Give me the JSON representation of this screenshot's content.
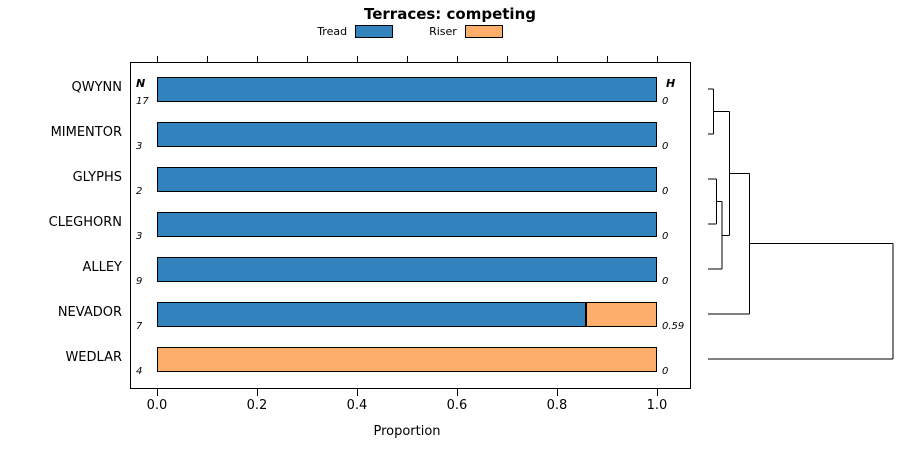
{
  "chart_data": {
    "type": "bar",
    "stacked": true,
    "orientation": "horizontal",
    "title": "Terraces: competing",
    "xlabel": "Proportion",
    "xlim": [
      0,
      1
    ],
    "x_ticks": [
      "0.0",
      "0.2",
      "0.4",
      "0.6",
      "0.8",
      "1.0"
    ],
    "legend_position": "top",
    "grid": false,
    "categories": [
      "QWYNN",
      "MIMENTOR",
      "GLYPHS",
      "CLEGHORN",
      "ALLEY",
      "NEVADOR",
      "WEDLAR"
    ],
    "series": [
      {
        "name": "Tread",
        "color": "#3182BD",
        "values": [
          1.0,
          1.0,
          1.0,
          1.0,
          1.0,
          0.857,
          0.0
        ]
      },
      {
        "name": "Riser",
        "color": "#FDAE6B",
        "values": [
          0.0,
          0.0,
          0.0,
          0.0,
          0.0,
          0.143,
          1.0
        ]
      }
    ],
    "col_headers": {
      "n": "N",
      "h": "H"
    },
    "n_values": [
      17,
      3,
      2,
      3,
      9,
      7,
      4
    ],
    "h_values": [
      "0",
      "0",
      "0",
      "0",
      "0",
      "0.59",
      "0"
    ],
    "dendrogram": {
      "merges": [
        {
          "left": "QWYNN",
          "right": "MIMENTOR",
          "height": 0.03
        },
        {
          "left": "GLYPHS",
          "right": "CLEGHORN",
          "height": 0.045
        },
        {
          "left": "#2",
          "right": "ALLEY",
          "height": 0.075
        },
        {
          "left": "#1",
          "right": "#3",
          "height": 0.115
        },
        {
          "left": "#4",
          "right": "NEVADOR",
          "height": 0.225
        },
        {
          "left": "#5",
          "right": "WEDLAR",
          "height": 1.0
        }
      ]
    }
  }
}
